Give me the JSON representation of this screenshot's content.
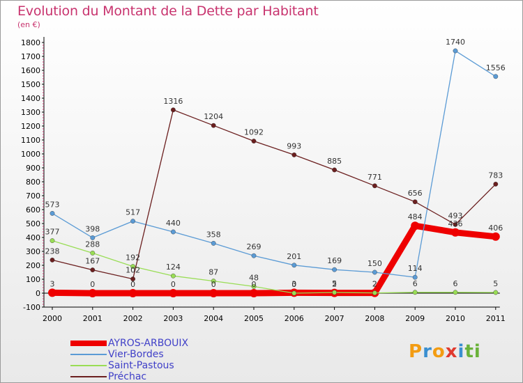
{
  "title": "Evolution du Montant de la Dette par Habitant",
  "unit": "(en €)",
  "logo": {
    "letters": [
      "P",
      "r",
      "o",
      "x",
      "i",
      "t",
      "i"
    ],
    "colors": [
      "#f39c12",
      "#3a8fd0",
      "#f39c12",
      "#e03a2f",
      "#3a8fd0",
      "#6ab23a",
      "#6ab23a"
    ]
  },
  "chart_data": {
    "type": "line",
    "x": [
      "2000",
      "2001",
      "2002",
      "2003",
      "2004",
      "2005",
      "2006",
      "2007",
      "2008",
      "2009",
      "2010",
      "2011"
    ],
    "ylim": [
      -100,
      1800
    ],
    "yticks": [
      -100,
      0,
      100,
      200,
      300,
      400,
      500,
      600,
      700,
      800,
      900,
      1000,
      1100,
      1200,
      1300,
      1400,
      1500,
      1600,
      1700,
      1800
    ],
    "grid": false,
    "legend_position": "bottom-left",
    "series": [
      {
        "name": "AYROS-ARBOUIX",
        "color": "#ee0000",
        "values": [
          3,
          0,
          0,
          0,
          0,
          0,
          3,
          2,
          2,
          484,
          436,
          406
        ]
      },
      {
        "name": "Vier-Bordes",
        "color": "#5b9bd5",
        "values": [
          573,
          398,
          517,
          440,
          358,
          269,
          201,
          169,
          150,
          114,
          1740,
          1556
        ]
      },
      {
        "name": "Saint-Pastous",
        "color": "#99dd55",
        "values": [
          377,
          288,
          192,
          124,
          87,
          48,
          0,
          5,
          2,
          6,
          6,
          5
        ]
      },
      {
        "name": "Préchac",
        "color": "#6b1f1f",
        "values": [
          238,
          167,
          102,
          1316,
          1204,
          1092,
          993,
          885,
          771,
          656,
          493,
          783
        ]
      }
    ]
  }
}
